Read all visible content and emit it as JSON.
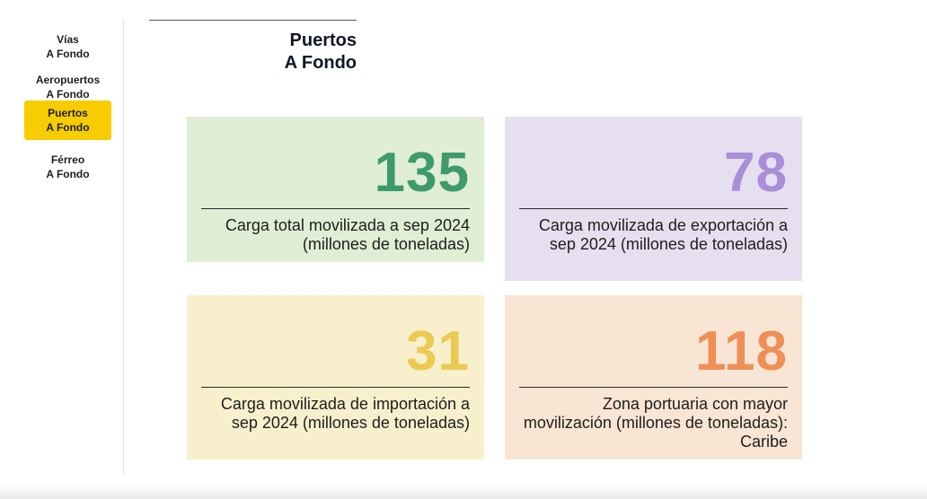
{
  "sidebar": {
    "items": [
      {
        "line1": "Vías",
        "line2": "A Fondo",
        "active": false
      },
      {
        "line1": "Aeropuertos",
        "line2": "A Fondo",
        "active": false
      },
      {
        "line1": "Puertos",
        "line2": "A Fondo",
        "active": true
      },
      {
        "line1": "Férreo",
        "line2": "A Fondo",
        "active": false
      }
    ]
  },
  "header": {
    "title_line1": "Puertos",
    "title_line2": "A Fondo"
  },
  "cards": [
    {
      "value": "135",
      "color": "#3e9a6b",
      "description": "Carga total movilizada a sep 2024 (millones de toneladas)"
    },
    {
      "value": "78",
      "color": "#a98ed8",
      "description": "Carga movilizada de exportación a sep 2024 (millones de toneladas)"
    },
    {
      "value": "31",
      "color": "#ecc950",
      "description": "Carga movilizada de importación a sep 2024 (millones de toneladas)"
    },
    {
      "value": "118",
      "color": "#ef8f56",
      "description": "Zona portuaria con mayor movilización (millones de toneladas): Caribe"
    }
  ]
}
